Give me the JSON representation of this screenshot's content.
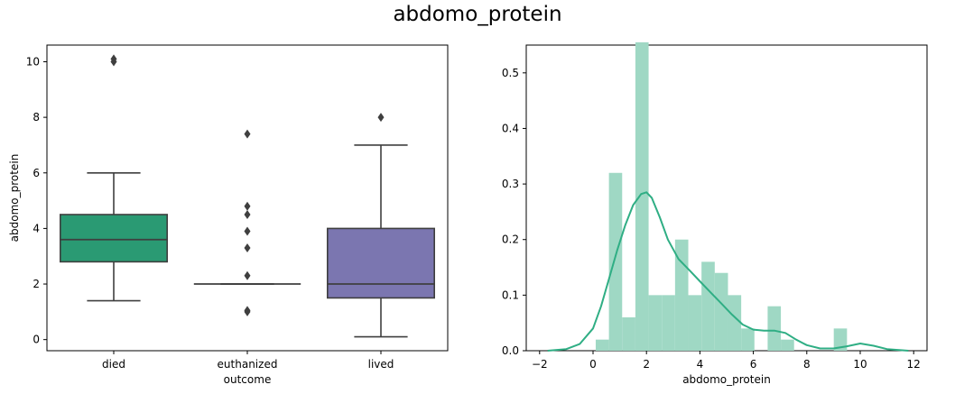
{
  "figure_title": "abdomo_protein",
  "colors": {
    "died": "#2a9a73",
    "euthanized": "#e07b3c",
    "lived": "#7b76b0",
    "hist_fill": "#9fd8c4",
    "kde_line": "#2fae84",
    "box_edge": "#3f3f3f"
  },
  "chart_data": [
    {
      "type": "box",
      "title": "",
      "xlabel": "outcome",
      "ylabel": "abdomo_protein",
      "categories": [
        "died",
        "euthanized",
        "lived"
      ],
      "ylim": [
        -0.4,
        10.6
      ],
      "yticks": [
        0,
        2,
        4,
        6,
        8,
        10
      ],
      "boxes": [
        {
          "category": "died",
          "whisker_low": 1.4,
          "q1": 2.8,
          "median": 3.6,
          "q3": 4.5,
          "whisker_high": 6.0,
          "outliers": [
            10.0,
            10.1
          ]
        },
        {
          "category": "euthanized",
          "whisker_low": 2.0,
          "q1": 2.0,
          "median": 2.0,
          "q3": 2.0,
          "whisker_high": 2.0,
          "outliers": [
            1.0,
            1.05,
            2.3,
            3.3,
            3.9,
            4.5,
            4.8,
            7.4
          ]
        },
        {
          "category": "lived",
          "whisker_low": 0.1,
          "q1": 1.5,
          "median": 2.0,
          "q3": 4.0,
          "whisker_high": 7.0,
          "outliers": [
            8.0
          ]
        }
      ]
    },
    {
      "type": "histogram",
      "title": "",
      "xlabel": "abdomo_protein",
      "ylabel": "",
      "xlim": [
        -2.5,
        12.5
      ],
      "ylim": [
        0,
        0.55
      ],
      "xticks": [
        -2,
        0,
        2,
        4,
        6,
        8,
        10,
        12
      ],
      "yticks": [
        0.0,
        0.1,
        0.2,
        0.3,
        0.4,
        0.5
      ],
      "ytick_labels": [
        "0.0",
        "0.1",
        "0.2",
        "0.3",
        "0.4",
        "0.5"
      ],
      "bin_edges": [
        0.1,
        0.595,
        1.09,
        1.585,
        2.08,
        2.575,
        3.07,
        3.565,
        4.06,
        4.555,
        5.05,
        5.545,
        6.04,
        6.535,
        7.03,
        7.525,
        8.02,
        8.515,
        9.01,
        9.505,
        10.0
      ],
      "bin_heights": [
        0.02,
        0.32,
        0.06,
        0.555,
        0.1,
        0.1,
        0.2,
        0.1,
        0.16,
        0.14,
        0.1,
        0.04,
        0.0,
        0.08,
        0.02,
        0.0,
        0.0,
        0.0,
        0.04,
        0.0
      ],
      "kde": {
        "x": [
          -1.7,
          -1.0,
          -0.5,
          0.0,
          0.3,
          0.6,
          0.9,
          1.2,
          1.5,
          1.8,
          2.0,
          2.2,
          2.5,
          2.8,
          3.2,
          3.6,
          4.0,
          4.4,
          4.8,
          5.2,
          5.6,
          6.0,
          6.4,
          6.8,
          7.2,
          7.6,
          8.0,
          8.5,
          9.0,
          9.5,
          10.0,
          10.5,
          11.0,
          11.8
        ],
        "y": [
          0.0,
          0.003,
          0.012,
          0.04,
          0.08,
          0.13,
          0.18,
          0.225,
          0.262,
          0.282,
          0.285,
          0.275,
          0.24,
          0.2,
          0.165,
          0.145,
          0.125,
          0.105,
          0.085,
          0.065,
          0.047,
          0.038,
          0.036,
          0.036,
          0.032,
          0.02,
          0.01,
          0.004,
          0.004,
          0.008,
          0.013,
          0.009,
          0.003,
          0.0
        ]
      }
    }
  ]
}
